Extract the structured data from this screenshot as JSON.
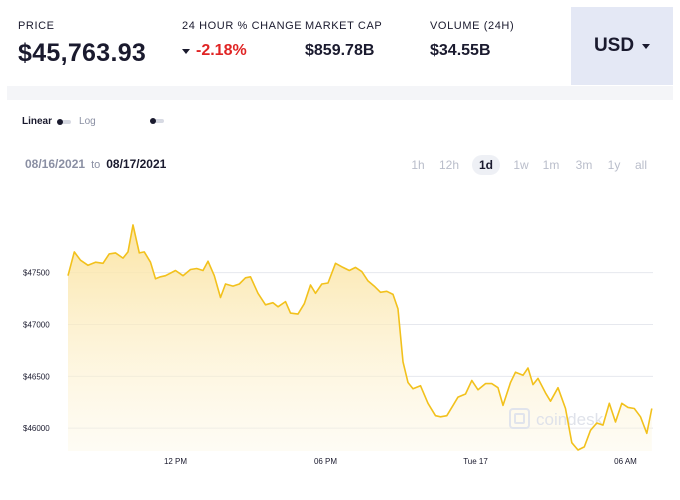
{
  "stats": {
    "price": {
      "label": "PRICE",
      "value": "$45,763.93"
    },
    "change": {
      "label": "24 HOUR % CHANGE",
      "value": "-2.18%",
      "direction_icon": "down-caret-icon"
    },
    "market_cap": {
      "label": "MARKET CAP",
      "value": "$859.78B"
    },
    "volume": {
      "label": "VOLUME (24H)",
      "value": "$34.55B"
    }
  },
  "currency": {
    "label": "USD",
    "icon": "chevron-down-icon"
  },
  "scale": {
    "linear_label": "Linear",
    "log_label": "Log",
    "selected": "Linear"
  },
  "date_range": {
    "from": "08/16/2021",
    "to_word": "to",
    "to": "08/17/2021"
  },
  "ranges": [
    "1h",
    "12h",
    "1d",
    "1w",
    "1m",
    "3m",
    "1y",
    "all"
  ],
  "selected_range": "1d",
  "watermark": "coindesk",
  "colors": {
    "line": "#f2c11c",
    "fill_top": "#fbe7a6",
    "negative": "#e02424",
    "grid": "#e6e8ee"
  },
  "chart_data": {
    "type": "area",
    "x_tick_labels": [
      "12 PM",
      "06 PM",
      "Tue 17",
      "06 AM"
    ],
    "x_ticks_at": [
      12,
      18,
      24,
      30
    ],
    "y_tick_labels": [
      "$47500",
      "$47000",
      "$46500",
      "$46000"
    ],
    "y_ticks": [
      47500,
      47000,
      46500,
      46000
    ],
    "xlim": [
      7.7,
      31.1
    ],
    "ylim": [
      45780,
      48200
    ],
    "grid": true,
    "series": [
      {
        "x": [
          7.7,
          7.95,
          8.2,
          8.5,
          8.8,
          9.1,
          9.35,
          9.6,
          9.9,
          10.1,
          10.3,
          10.55,
          10.75,
          11.0,
          11.2,
          11.4,
          11.6,
          12.0,
          12.3,
          12.6,
          12.85,
          13.1,
          13.3,
          13.55,
          13.8,
          14.0,
          14.3,
          14.55,
          14.8,
          15.0,
          15.3,
          15.6,
          15.9,
          16.1,
          16.4,
          16.6,
          16.9,
          17.15,
          17.4,
          17.6,
          17.85,
          18.1,
          18.4,
          18.7,
          18.95,
          19.2,
          19.45,
          19.7,
          19.95,
          20.2,
          20.45,
          20.7,
          20.9,
          21.1,
          21.3,
          21.5,
          21.8,
          22.1,
          22.4,
          22.6,
          22.85,
          23.1,
          23.3,
          23.6,
          23.85,
          24.1,
          24.4,
          24.65,
          24.9,
          25.1,
          25.4,
          25.6,
          25.9,
          26.1,
          26.3,
          26.5,
          26.8,
          27.0,
          27.3,
          27.6,
          27.85,
          28.1,
          28.35,
          28.6,
          28.85,
          29.1,
          29.35,
          29.6,
          29.85,
          30.1,
          30.35,
          30.6,
          30.85,
          31.05
        ],
        "y": [
          47470,
          47700,
          47620,
          47570,
          47600,
          47590,
          47680,
          47690,
          47640,
          47700,
          47960,
          47690,
          47700,
          47600,
          47440,
          47460,
          47470,
          47520,
          47470,
          47530,
          47540,
          47520,
          47610,
          47470,
          47260,
          47390,
          47370,
          47390,
          47450,
          47460,
          47300,
          47190,
          47210,
          47170,
          47220,
          47110,
          47100,
          47200,
          47380,
          47300,
          47390,
          47400,
          47590,
          47550,
          47520,
          47550,
          47510,
          47420,
          47370,
          47310,
          47320,
          47290,
          47150,
          46640,
          46440,
          46380,
          46410,
          46240,
          46120,
          46110,
          46120,
          46220,
          46300,
          46330,
          46460,
          46370,
          46430,
          46430,
          46390,
          46220,
          46440,
          46540,
          46510,
          46580,
          46420,
          46480,
          46340,
          46260,
          46390,
          46190,
          45860,
          45790,
          45820,
          45980,
          46050,
          46030,
          46240,
          46060,
          46240,
          46200,
          46190,
          46110,
          45950,
          46190
        ]
      }
    ]
  }
}
